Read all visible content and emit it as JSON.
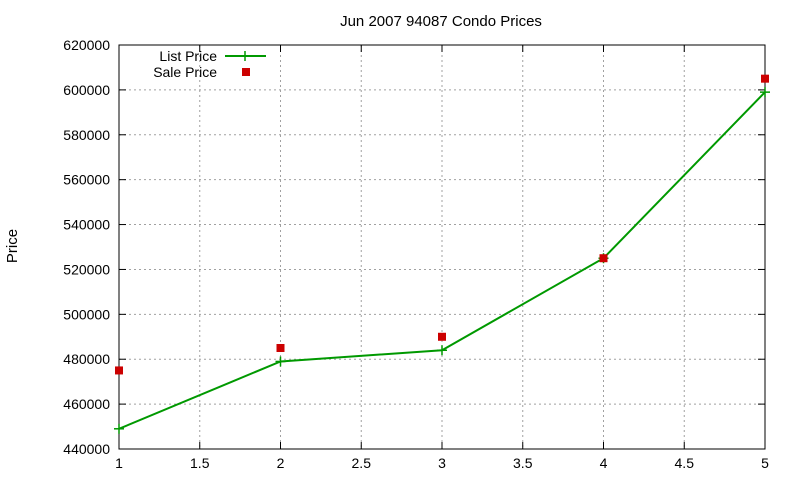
{
  "chart_data": {
    "type": "line",
    "title": "Jun 2007 94087 Condo Prices",
    "xlabel": "",
    "ylabel": "Price",
    "xlim": [
      1,
      5
    ],
    "ylim": [
      440000,
      620000
    ],
    "x_ticks": [
      "1",
      "1.5",
      "2",
      "2.5",
      "3",
      "3.5",
      "4",
      "4.5",
      "5"
    ],
    "y_ticks": [
      "440000",
      "460000",
      "480000",
      "500000",
      "520000",
      "540000",
      "560000",
      "580000",
      "600000",
      "620000"
    ],
    "grid": true,
    "legend_position": "top-left",
    "series": [
      {
        "name": "List Price",
        "style": "line-with-plus-markers",
        "color": "#009900",
        "x": [
          1,
          2,
          3,
          4,
          5
        ],
        "y": [
          449000,
          479000,
          484000,
          525000,
          599000
        ]
      },
      {
        "name": "Sale Price",
        "style": "square-points",
        "color": "#cc0000",
        "x": [
          1,
          2,
          3,
          4,
          5
        ],
        "y": [
          475000,
          485000,
          490000,
          525000,
          605000
        ]
      }
    ]
  }
}
